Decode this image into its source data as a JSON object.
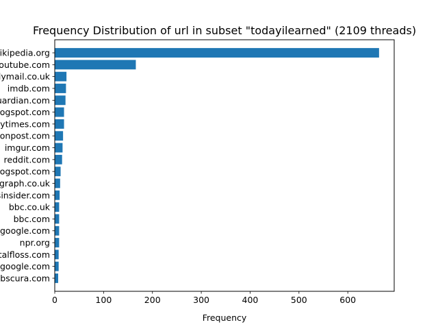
{
  "chart_data": {
    "type": "bar",
    "orientation": "horizontal",
    "title": "Frequency Distribution of url in subset \"todayilearned\" (2109 threads)",
    "xlabel": "Frequency",
    "ylabel": "",
    "xlim": [
      0,
      695
    ],
    "xticks": [
      0,
      100,
      200,
      300,
      400,
      500,
      600
    ],
    "bar_color": "#1f77b4",
    "grid": false,
    "legend": "none",
    "categories": [
      "en.wikipedia.org",
      "youtube.com",
      "dailymail.co.uk",
      "imdb.com",
      "theguardian.com",
      "blogspot.com",
      "nytimes.com",
      "huffingtonpost.com",
      "imgur.com",
      "reddit.com",
      "blogspot.com",
      "telegraph.co.uk",
      "businessinsider.com",
      "bbc.co.uk",
      "bbc.com",
      "google.com",
      "npr.org",
      "mentalfloss.com",
      "books.google.com",
      "atlasobscura.com"
    ],
    "values": [
      664,
      166,
      24,
      23,
      22,
      19,
      19,
      17,
      16,
      15,
      12,
      11,
      10,
      9,
      9,
      9,
      9,
      8,
      8,
      7
    ]
  }
}
